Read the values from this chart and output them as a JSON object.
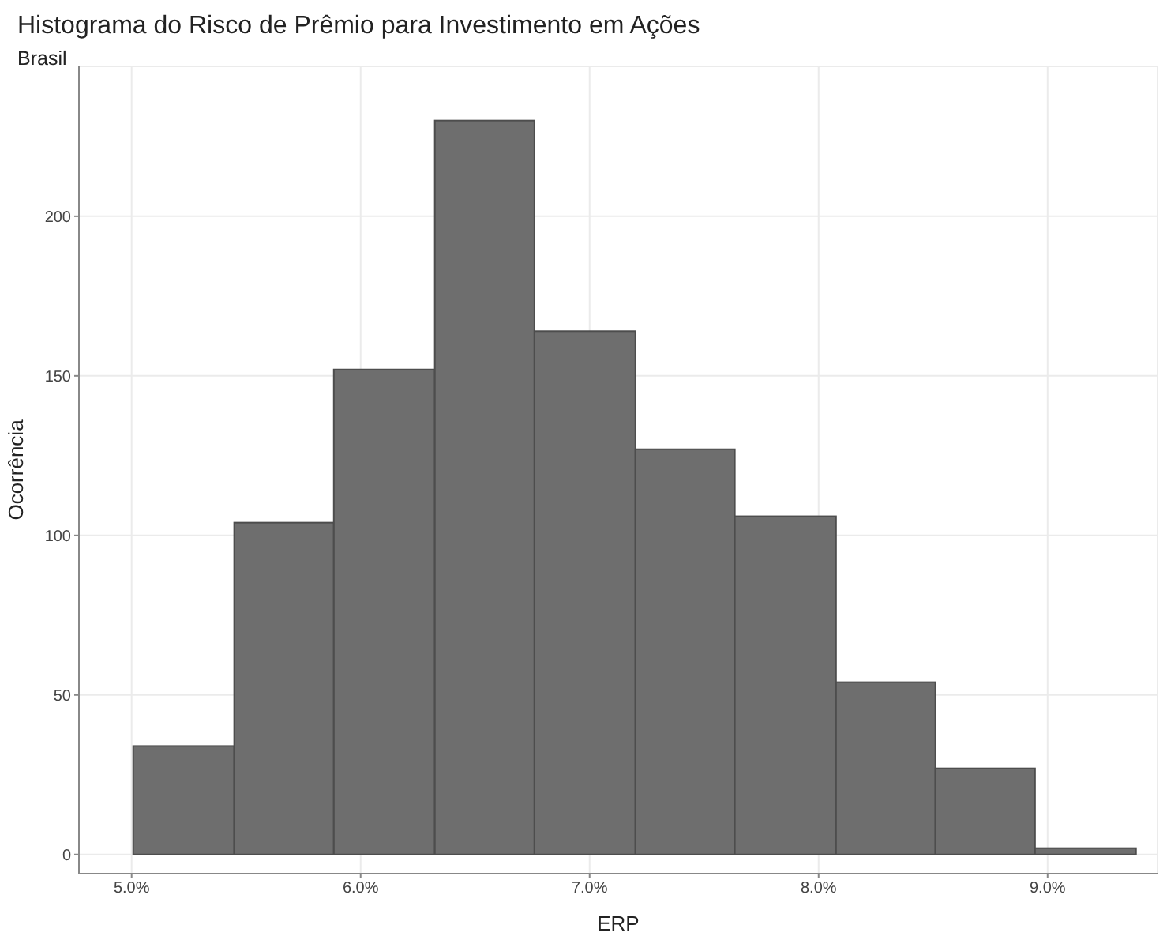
{
  "chart_data": {
    "type": "histogram",
    "title": "Histograma do Risco de Prêmio para Investimento em Ações",
    "subtitle": "Brasil",
    "xlabel": "ERP",
    "ylabel": "Ocorrência",
    "bins": [
      5.007,
      5.448,
      5.883,
      6.324,
      6.759,
      7.2,
      7.634,
      8.076,
      8.51,
      8.945,
      9.386
    ],
    "values": [
      34,
      104,
      152,
      230,
      164,
      127,
      106,
      54,
      27,
      2
    ],
    "color": "#6e6e6e",
    "xlim": [
      4.77,
      9.48
    ],
    "xticks": [
      {
        "value": 5,
        "label": "5.0%"
      },
      {
        "value": 6,
        "label": "6.0%"
      },
      {
        "value": 7,
        "label": "7.0%"
      },
      {
        "value": 8,
        "label": "8.0%"
      },
      {
        "value": 9,
        "label": "9.0%"
      }
    ],
    "ylim": [
      -6,
      247
    ],
    "yticks": [
      0,
      50,
      100,
      150,
      200
    ],
    "grid": true
  }
}
